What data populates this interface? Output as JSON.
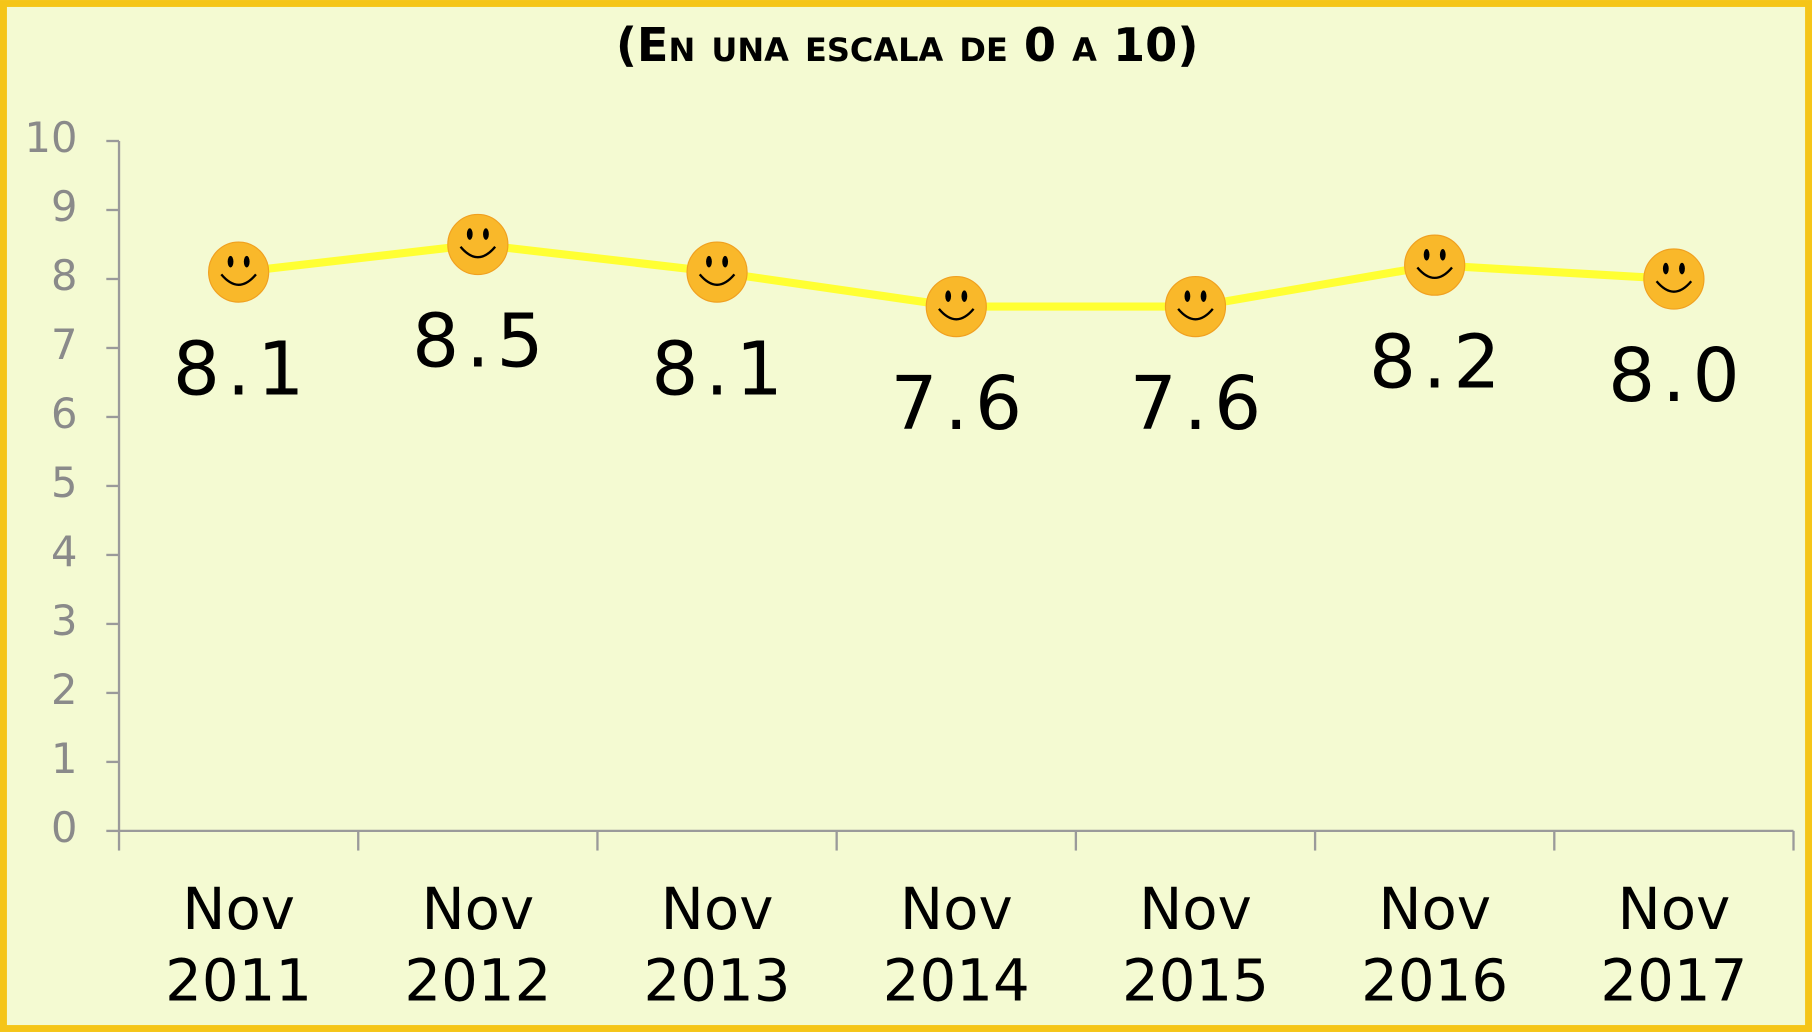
{
  "chart_data": {
    "type": "line",
    "title": "(En una escala de 0 a 10)",
    "categories": [
      "Nov 2011",
      "Nov 2012",
      "Nov 2013",
      "Nov 2014",
      "Nov 2015",
      "Nov 2016",
      "Nov 2017"
    ],
    "values": [
      8.1,
      8.5,
      8.1,
      7.6,
      7.6,
      8.2,
      8.0
    ],
    "value_labels": [
      "8.1",
      "8.5",
      "8.1",
      "7.6",
      "7.6",
      "8.2",
      "8.0"
    ],
    "color": "#ffff33",
    "marker_color": "#f9b82a",
    "ylim": [
      0,
      10
    ],
    "yticks": [
      0,
      1,
      2,
      3,
      4,
      5,
      6,
      7,
      8,
      9,
      10
    ],
    "grid": false
  }
}
